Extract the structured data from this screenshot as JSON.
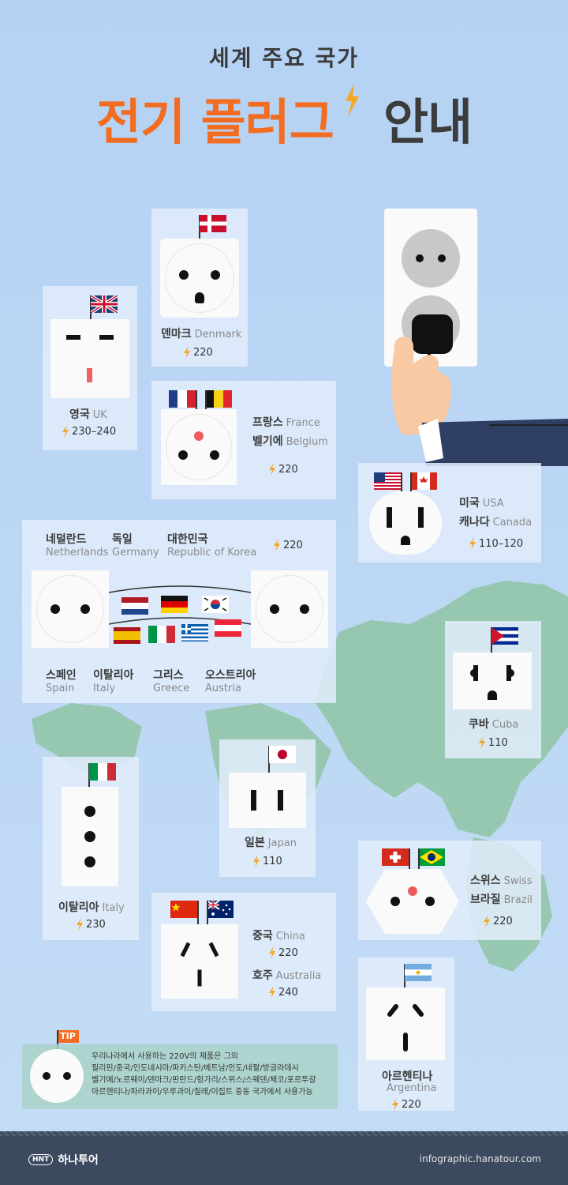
{
  "header": {
    "subtitle": "세계 주요 국가",
    "title_part1": "전기 플러그",
    "title_part2": "안내"
  },
  "countries": {
    "uk": {
      "ko": "영국",
      "en": "UK",
      "volt": "230–240"
    },
    "denmark": {
      "ko": "덴마크",
      "en": "Denmark",
      "volt": "220"
    },
    "france": {
      "ko": "프랑스",
      "en": "France"
    },
    "belgium": {
      "ko": "벨기에",
      "en": "Belgium",
      "volt": "220"
    },
    "usa": {
      "ko": "미국",
      "en": "USA"
    },
    "canada": {
      "ko": "캐나다",
      "en": "Canada",
      "volt": "110–120"
    },
    "netherlands": {
      "ko": "네덜란드",
      "en": "Netherlands"
    },
    "germany": {
      "ko": "독일",
      "en": "Germany"
    },
    "korea": {
      "ko": "대한민국",
      "en": "Republic of Korea"
    },
    "europe_volt": "220",
    "spain": {
      "ko": "스페인",
      "en": "Spain"
    },
    "italy_eu": {
      "ko": "이탈리아",
      "en": "Italy"
    },
    "greece": {
      "ko": "그리스",
      "en": "Greece"
    },
    "austria": {
      "ko": "오스트리아",
      "en": "Austria"
    },
    "cuba": {
      "ko": "쿠바",
      "en": "Cuba",
      "volt": "110"
    },
    "italy": {
      "ko": "이탈리아",
      "en": "Italy",
      "volt": "230"
    },
    "japan": {
      "ko": "일본",
      "en": "Japan",
      "volt": "110"
    },
    "switzerland": {
      "ko": "스위스",
      "en": "Swiss"
    },
    "brazil": {
      "ko": "브라질",
      "en": "Brazil",
      "volt": "220"
    },
    "china": {
      "ko": "중국",
      "en": "China",
      "volt": "220"
    },
    "australia": {
      "ko": "호주",
      "en": "Australia",
      "volt": "240"
    },
    "argentina": {
      "ko": "아르헨티나",
      "en": "Argentina",
      "volt": "220"
    }
  },
  "tip": {
    "label": "TIP",
    "lines": [
      "우리나라에서 사용하는 220V의 제품은 그외",
      "필리핀/중국/인도네시아/파키스탄/베트남/인도/네팔/방글라데시",
      "벨기에/노르웨이/덴마크/핀란드/헝가리/스위스/스웨덴/체코/포르투갈",
      "아르헨티나/파라과이/우루과이/칠레/이집트 중동 국가에서 사용가능"
    ]
  },
  "footer": {
    "logo_badge": "HNT",
    "logo_text": "하나투어",
    "url": "infographic.hanatour.com"
  },
  "colors": {
    "accent": "#f26d22",
    "background": "#b9d5f3",
    "footer": "#3b4a5f",
    "bolt": "#f5a623"
  }
}
